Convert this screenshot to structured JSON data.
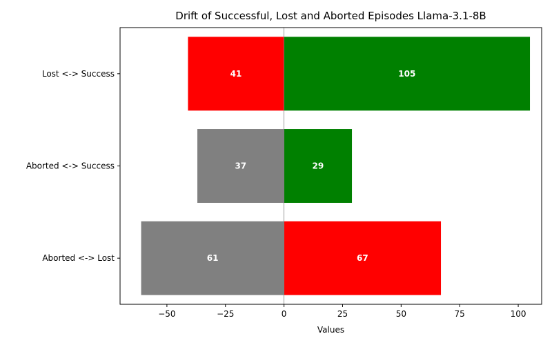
{
  "chart_data": {
    "type": "bar",
    "orientation": "horizontal",
    "title": "Drift of Successful, Lost and Aborted Episodes Llama-3.1-8B",
    "xlabel": "Values",
    "ylabel": "",
    "xlim": [
      -70,
      110
    ],
    "xticks": [
      -50,
      -25,
      0,
      25,
      50,
      75,
      100
    ],
    "xtick_labels": [
      "−50",
      "−25",
      "0",
      "25",
      "50",
      "75",
      "100"
    ],
    "categories": [
      "Lost <-> Success",
      "Aborted <-> Success",
      "Aborted <-> Lost"
    ],
    "left": {
      "values": [
        -41,
        -37,
        -61
      ],
      "labels": [
        "41",
        "37",
        "61"
      ],
      "colors": [
        "#ff0000",
        "#808080",
        "#808080"
      ]
    },
    "right": {
      "values": [
        105,
        29,
        67
      ],
      "labels": [
        "105",
        "29",
        "67"
      ],
      "colors": [
        "#008000",
        "#008000",
        "#ff0000"
      ]
    },
    "grid": false,
    "zero_line": true
  }
}
